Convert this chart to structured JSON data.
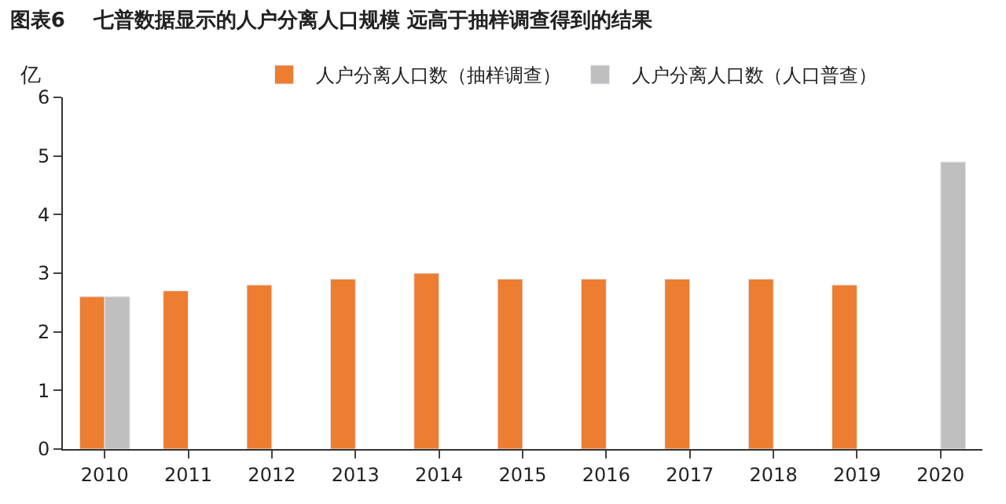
{
  "chart_data": {
    "type": "bar",
    "title": "图表6    七普数据显示的人户分离人口规模 远高于抽样调查得到的结果",
    "ylabel": "亿",
    "categories": [
      "2010",
      "2011",
      "2012",
      "2013",
      "2014",
      "2015",
      "2016",
      "2017",
      "2018",
      "2019",
      "2020"
    ],
    "series": [
      {
        "name": "人户分离人口数（抽样调查）",
        "color": "#ed7d31",
        "values": [
          2.6,
          2.7,
          2.8,
          2.9,
          3.0,
          2.9,
          2.9,
          2.9,
          2.9,
          2.8,
          null
        ]
      },
      {
        "name": "人户分离人口数（人口普查）",
        "color": "#bfbfbf",
        "values": [
          2.6,
          null,
          null,
          null,
          null,
          null,
          null,
          null,
          null,
          null,
          4.9
        ]
      }
    ],
    "ylim": [
      0,
      6
    ],
    "yticks": [
      0,
      1,
      2,
      3,
      4,
      5,
      6
    ],
    "legend": "top"
  }
}
